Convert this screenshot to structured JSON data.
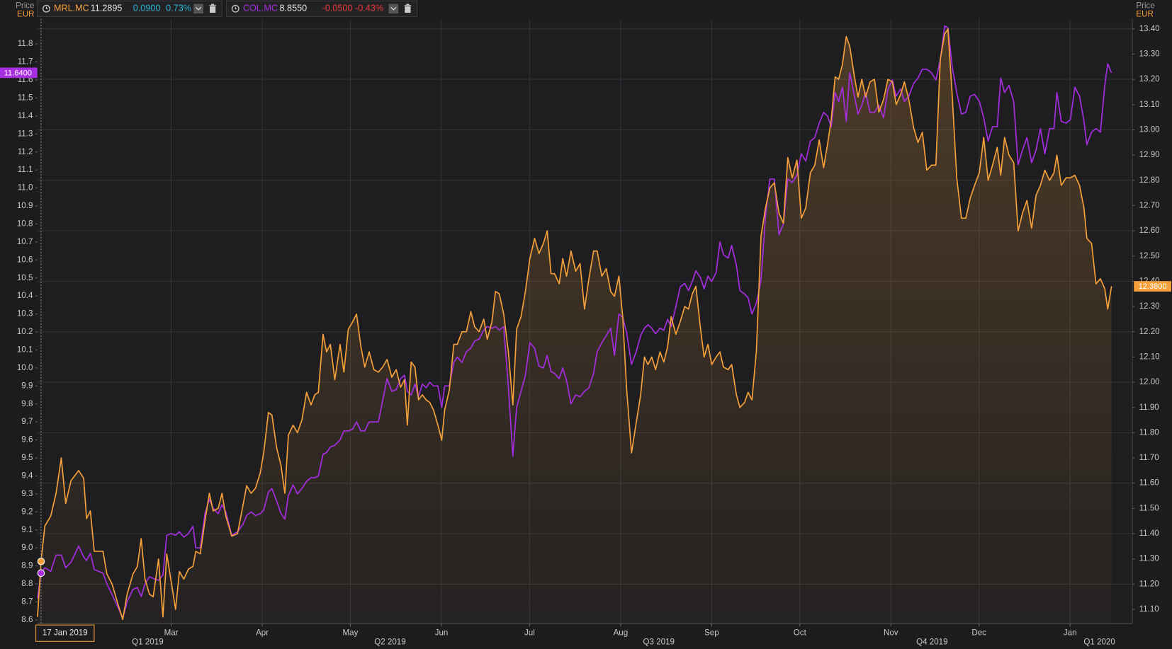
{
  "chart_data": {
    "type": "line",
    "left_axis": {
      "label": "Price",
      "unit": "EUR"
    },
    "right_axis": {
      "label": "Price",
      "unit": "EUR"
    },
    "cursor_date": "17 Jan 2019",
    "xlim": [
      13.45,
      386.2
    ],
    "xticks": [
      {
        "value": 59,
        "label": "Mar"
      },
      {
        "value": 90,
        "label": "Apr"
      },
      {
        "value": 120,
        "label": "May"
      },
      {
        "value": 151,
        "label": "Jun"
      },
      {
        "value": 181,
        "label": "Jul"
      },
      {
        "value": 212,
        "label": "Aug"
      },
      {
        "value": 243,
        "label": "Sep"
      },
      {
        "value": 273,
        "label": "Oct"
      },
      {
        "value": 304,
        "label": "Nov"
      },
      {
        "value": 334,
        "label": "Dec"
      },
      {
        "value": 365,
        "label": "Jan"
      }
    ],
    "quarter_ticks": [
      {
        "value": 51,
        "label": "Q1 2019"
      },
      {
        "value": 133.5,
        "label": "Q2 2019"
      },
      {
        "value": 225,
        "label": "Q3 2019"
      },
      {
        "value": 318,
        "label": "Q4 2019"
      },
      {
        "value": 375,
        "label": "Q1 2020"
      }
    ],
    "ylim": [
      8.58,
      11.94
    ],
    "yticks": [
      8.6,
      8.7,
      8.8,
      8.9,
      {
        "value": 9,
        "label": "9.0"
      },
      9.1,
      9.2,
      9.3,
      9.4,
      9.5,
      9.6,
      9.7,
      9.8,
      9.9,
      {
        "value": 10,
        "label": "10.0"
      },
      10.1,
      10.2,
      10.3,
      10.4,
      10.5,
      10.6,
      10.7,
      10.8,
      10.9,
      {
        "value": 11,
        "label": "11.0"
      },
      11.1,
      11.2,
      11.3,
      11.4,
      11.5,
      11.6,
      11.7,
      11.8
    ],
    "y2lim": [
      11.044,
      13.44
    ],
    "y2ticks": [
      {
        "value": 11.1,
        "label": "11.10"
      },
      {
        "value": 11.2,
        "label": "11.20"
      },
      {
        "value": 11.3,
        "label": "11.30"
      },
      {
        "value": 11.4,
        "label": "11.40"
      },
      {
        "value": 11.5,
        "label": "11.50"
      },
      {
        "value": 11.6,
        "label": "11.60"
      },
      {
        "value": 11.7,
        "label": "11.70"
      },
      {
        "value": 11.8,
        "label": "11.80"
      },
      {
        "value": 11.9,
        "label": "11.90"
      },
      {
        "value": 12.0,
        "label": "12.00"
      },
      {
        "value": 12.1,
        "label": "12.10"
      },
      {
        "value": 12.2,
        "label": "12.20"
      },
      {
        "value": 12.3,
        "label": "12.30"
      },
      {
        "value": 12.4,
        "label": "12.40"
      },
      {
        "value": 12.5,
        "label": "12.50"
      },
      {
        "value": 12.6,
        "label": "12.60"
      },
      {
        "value": 12.7,
        "label": "12.70"
      },
      {
        "value": 12.8,
        "label": "12.80"
      },
      {
        "value": 12.9,
        "label": "12.90"
      },
      {
        "value": 13.0,
        "label": "13.00"
      },
      {
        "value": 13.1,
        "label": "13.10"
      },
      {
        "value": 13.2,
        "label": "13.20"
      },
      {
        "value": 13.3,
        "label": "13.30"
      },
      {
        "value": 13.4,
        "label": "13.40"
      }
    ],
    "grid": true,
    "x": [
      13.5,
      14.7,
      16.0,
      18.0,
      19.8,
      21.6,
      23.1,
      24.9,
      27.5,
      29.2,
      30.2,
      31.5,
      32.8,
      35.8,
      37.1,
      38.9,
      40.9,
      42.5,
      44.0,
      46.0,
      47.5,
      48.8,
      50.1,
      51.6,
      52.9,
      54.7,
      56.2,
      57.5,
      59.0,
      60.5,
      61.8,
      63.3,
      64.9,
      66.4,
      67.4,
      68.9,
      70.5,
      72.0,
      73.3,
      75.0,
      76.3,
      77.6,
      79.6,
      81.6,
      83.4,
      84.7,
      86.2,
      87.7,
      89.3,
      90.5,
      92.1,
      93.3,
      94.9,
      96.4,
      97.7,
      98.9,
      100.5,
      102.0,
      103.5,
      105.1,
      106.6,
      107.9,
      109.1,
      110.7,
      111.9,
      113.2,
      114.7,
      116.5,
      117.8,
      119.3,
      120.8,
      122.1,
      123.6,
      124.9,
      126.4,
      128.0,
      129.5,
      131.0,
      132.5,
      134.1,
      135.6,
      137.1,
      138.4,
      139.4,
      140.7,
      142.0,
      143.2,
      144.5,
      145.8,
      147.0,
      148.3,
      149.8,
      151.1,
      152.1,
      153.7,
      155.2,
      156.4,
      158.0,
      159.5,
      161.0,
      162.3,
      163.8,
      165.4,
      166.6,
      168.2,
      169.4,
      170.7,
      172.2,
      173.8,
      175.3,
      176.6,
      178.1,
      179.6,
      181.1,
      182.7,
      184.2,
      185.7,
      187.0,
      188.3,
      189.5,
      191.1,
      192.3,
      193.6,
      195.1,
      196.7,
      198.2,
      199.7,
      201.2,
      202.8,
      204.0,
      205.6,
      207.1,
      208.6,
      209.9,
      211.4,
      212.7,
      214.0,
      215.7,
      217.3,
      218.8,
      220.1,
      221.3,
      222.6,
      223.9,
      225.4,
      226.7,
      228.0,
      229.2,
      230.8,
      232.3,
      233.8,
      235.1,
      236.4,
      237.6,
      239.2,
      240.4,
      241.7,
      243.0,
      244.5,
      245.8,
      247.0,
      248.6,
      249.8,
      251.4,
      252.6,
      254.2,
      255.4,
      256.7,
      258.2,
      259.8,
      261.3,
      262.8,
      264.3,
      265.9,
      267.4,
      268.9,
      270.4,
      272.0,
      273.5,
      275.0,
      276.6,
      278.1,
      279.6,
      281.1,
      282.4,
      283.7,
      285.0,
      286.2,
      287.5,
      288.8,
      290.0,
      291.6,
      292.8,
      294.1,
      295.4,
      296.9,
      298.4,
      299.9,
      301.5,
      303.0,
      304.5,
      305.8,
      307.3,
      308.6,
      310.1,
      311.7,
      313.2,
      314.7,
      316.2,
      317.8,
      319.3,
      320.8,
      322.3,
      323.4,
      324.9,
      326.4,
      328.0,
      329.5,
      331.0,
      332.5,
      334.1,
      335.6,
      337.1,
      338.6,
      340.2,
      341.4,
      342.7,
      344.2,
      345.8,
      347.3,
      348.8,
      350.3,
      351.9,
      353.4,
      354.9,
      356.4,
      358.0,
      359.5,
      360.5,
      362.0,
      363.6,
      365.1,
      366.6,
      368.2,
      369.7,
      370.7,
      372.3,
      373.8,
      375.3,
      376.8,
      377.8,
      379.1
    ],
    "series": [
      {
        "name": "MRL.MC",
        "color": "#f5a03a",
        "axis": "y2",
        "area": true,
        "quote": {
          "last": "11.2895",
          "change": "0.0900",
          "change_pct": "0.73%",
          "change_color": "#2cb5d8"
        },
        "last_label": {
          "value": 12.38,
          "label": "12.3800"
        },
        "values": [
          11.07,
          11.29,
          11.43,
          11.47,
          11.56,
          11.7,
          11.52,
          11.61,
          11.65,
          11.62,
          11.46,
          11.49,
          11.33,
          11.33,
          11.24,
          11.2,
          11.12,
          11.06,
          11.16,
          11.24,
          11.27,
          11.38,
          11.22,
          11.16,
          11.15,
          11.3,
          11.07,
          11.32,
          11.21,
          11.1,
          11.25,
          11.22,
          11.26,
          11.27,
          11.33,
          11.32,
          11.45,
          11.56,
          11.49,
          11.5,
          11.56,
          11.47,
          11.39,
          11.4,
          11.51,
          11.59,
          11.56,
          11.58,
          11.64,
          11.72,
          11.88,
          11.87,
          11.74,
          11.67,
          11.56,
          11.79,
          11.83,
          11.8,
          11.85,
          11.96,
          11.91,
          11.95,
          11.96,
          12.19,
          12.12,
          12.15,
          12.01,
          12.15,
          12.04,
          12.21,
          12.24,
          12.27,
          12.14,
          12.06,
          12.12,
          12.05,
          12.04,
          12.06,
          12.09,
          12.02,
          12.05,
          11.98,
          12.01,
          11.83,
          12.08,
          12.06,
          11.93,
          11.95,
          11.93,
          11.92,
          11.89,
          11.83,
          11.77,
          11.89,
          11.97,
          12.15,
          12.15,
          12.2,
          12.2,
          12.28,
          12.22,
          12.2,
          12.25,
          12.17,
          12.24,
          12.36,
          12.35,
          12.27,
          12.12,
          11.91,
          12.21,
          12.26,
          12.36,
          12.49,
          12.57,
          12.51,
          12.55,
          12.6,
          12.43,
          12.43,
          12.39,
          12.49,
          12.42,
          12.52,
          12.44,
          12.47,
          12.29,
          12.41,
          12.52,
          12.52,
          12.42,
          12.45,
          12.36,
          12.34,
          12.42,
          12.26,
          11.98,
          11.72,
          11.84,
          11.95,
          12.1,
          12.07,
          12.1,
          12.05,
          12.12,
          12.08,
          12.14,
          12.26,
          12.19,
          12.24,
          12.3,
          12.29,
          12.35,
          12.38,
          12.21,
          12.1,
          12.15,
          12.07,
          12.1,
          12.12,
          12.06,
          12.05,
          12.07,
          11.95,
          11.9,
          11.92,
          11.96,
          11.93,
          12.12,
          12.58,
          12.69,
          12.77,
          12.79,
          12.67,
          12.63,
          12.89,
          12.81,
          12.88,
          12.65,
          12.69,
          12.83,
          12.86,
          12.96,
          12.85,
          12.94,
          13.04,
          13.21,
          13.2,
          13.26,
          13.37,
          13.33,
          13.21,
          13.13,
          13.2,
          13.13,
          13.19,
          13.2,
          13.07,
          13.12,
          13.2,
          13.19,
          13.1,
          13.14,
          13.19,
          13.12,
          13.01,
          12.95,
          12.99,
          12.84,
          12.86,
          12.86,
          13.28,
          13.38,
          13.4,
          13.13,
          12.81,
          12.65,
          12.65,
          12.73,
          12.78,
          12.83,
          12.97,
          12.8,
          12.86,
          12.93,
          12.82,
          12.97,
          12.9,
          12.87,
          12.6,
          12.67,
          12.72,
          12.61,
          12.74,
          12.78,
          12.84,
          12.8,
          12.83,
          12.9,
          12.78,
          12.81,
          12.81,
          12.82,
          12.78,
          12.69,
          12.57,
          12.55,
          12.39,
          12.41,
          12.37,
          12.29,
          12.38
        ]
      },
      {
        "name": "COL.MC",
        "color": "#a62ee0",
        "axis": "y",
        "quote": {
          "last": "8.8550",
          "change": "-0.0500",
          "change_pct": "-0.43%",
          "change_color": "#ee3a3a"
        },
        "last_label": {
          "value": 11.64,
          "label": "11.6400"
        },
        "values": [
          8.72,
          8.86,
          8.89,
          8.87,
          8.96,
          8.96,
          8.89,
          8.92,
          9.01,
          8.95,
          8.93,
          8.97,
          8.88,
          8.86,
          8.8,
          8.74,
          8.67,
          8.61,
          8.7,
          8.77,
          8.78,
          8.73,
          8.8,
          8.84,
          8.83,
          8.82,
          8.85,
          9.07,
          9.08,
          9.07,
          9.09,
          9.06,
          9.08,
          9.12,
          9.0,
          9.0,
          9.19,
          9.27,
          9.22,
          9.19,
          9.24,
          9.2,
          9.07,
          9.09,
          9.13,
          9.18,
          9.2,
          9.18,
          9.19,
          9.21,
          9.31,
          9.33,
          9.26,
          9.19,
          9.16,
          9.29,
          9.35,
          9.3,
          9.33,
          9.37,
          9.39,
          9.39,
          9.4,
          9.52,
          9.53,
          9.56,
          9.57,
          9.6,
          9.65,
          9.65,
          9.66,
          9.7,
          9.65,
          9.65,
          9.7,
          9.7,
          9.7,
          9.82,
          9.94,
          9.87,
          9.88,
          9.94,
          9.96,
          9.87,
          9.85,
          9.91,
          9.84,
          9.91,
          9.89,
          9.92,
          9.9,
          9.9,
          9.78,
          9.9,
          9.9,
          10.03,
          10.06,
          10.03,
          10.09,
          10.11,
          10.15,
          10.16,
          10.21,
          10.23,
          10.22,
          10.23,
          10.21,
          10.23,
          9.89,
          9.51,
          9.78,
          9.87,
          9.96,
          10.14,
          10.11,
          10.01,
          10.0,
          10.07,
          9.98,
          9.97,
          9.94,
          10.0,
          9.93,
          9.8,
          9.85,
          9.84,
          9.87,
          9.89,
          9.97,
          10.09,
          10.14,
          10.18,
          10.22,
          10.07,
          10.3,
          10.28,
          10.2,
          10.02,
          10.09,
          10.18,
          10.22,
          10.24,
          10.22,
          10.19,
          10.22,
          10.21,
          10.27,
          10.23,
          10.34,
          10.45,
          10.47,
          10.43,
          10.48,
          10.54,
          10.5,
          10.44,
          10.51,
          10.48,
          10.53,
          10.7,
          10.63,
          10.61,
          10.68,
          10.57,
          10.43,
          10.41,
          10.39,
          10.3,
          10.36,
          10.49,
          10.84,
          11.05,
          11.05,
          10.74,
          10.8,
          11.05,
          11.03,
          11.07,
          11.19,
          11.15,
          11.26,
          11.28,
          11.36,
          11.42,
          11.4,
          11.34,
          11.53,
          11.48,
          11.56,
          11.37,
          11.64,
          11.51,
          11.41,
          11.46,
          11.53,
          11.42,
          11.42,
          11.46,
          11.39,
          11.55,
          11.6,
          11.51,
          11.55,
          11.48,
          11.51,
          11.58,
          11.61,
          11.66,
          11.66,
          11.64,
          11.6,
          11.71,
          11.9,
          11.89,
          11.67,
          11.53,
          11.41,
          11.42,
          11.51,
          11.52,
          11.48,
          11.39,
          11.26,
          11.34,
          11.34,
          11.61,
          11.53,
          11.57,
          11.48,
          11.13,
          11.21,
          11.28,
          11.14,
          11.21,
          11.33,
          11.19,
          11.33,
          11.33,
          11.53,
          11.37,
          11.36,
          11.38,
          11.56,
          11.51,
          11.37,
          11.24,
          11.31,
          11.33,
          11.31,
          11.57,
          11.69,
          11.64
        ]
      }
    ]
  }
}
